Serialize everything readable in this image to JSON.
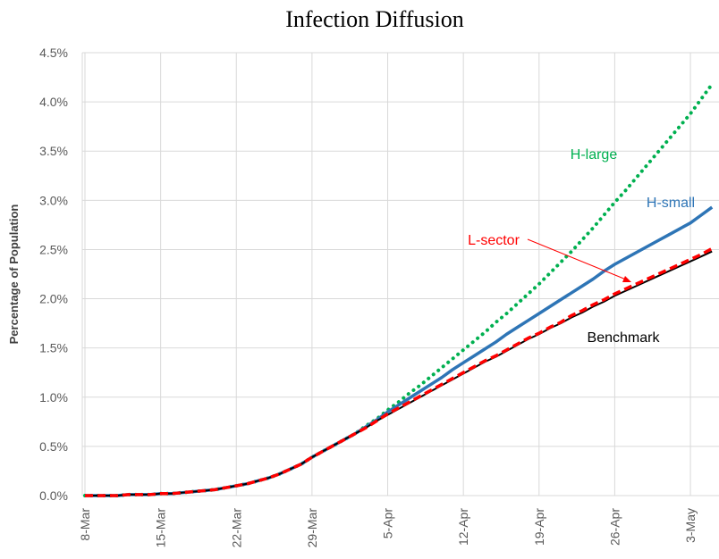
{
  "chart_data": {
    "type": "line",
    "title": "Infection Diffusion",
    "y_label": "Percentage of Population",
    "categories": [
      "8-Mar",
      null,
      null,
      null,
      null,
      null,
      null,
      "15-Mar",
      null,
      null,
      null,
      null,
      null,
      null,
      "22-Mar",
      null,
      null,
      null,
      null,
      null,
      null,
      "29-Mar",
      null,
      null,
      null,
      null,
      null,
      null,
      "5-Apr",
      null,
      null,
      null,
      null,
      null,
      null,
      "12-Apr",
      null,
      null,
      null,
      null,
      null,
      null,
      "19-Apr",
      null,
      null,
      null,
      null,
      null,
      null,
      "26-Apr",
      null,
      null,
      null,
      null,
      null,
      null,
      "3-May",
      null,
      null
    ],
    "ylim": [
      0,
      4.5
    ],
    "yticks": [
      {
        "value": 0,
        "label": "0.0%"
      },
      {
        "value": 0.5,
        "label": "0.5%"
      },
      {
        "value": 1,
        "label": "1.0%"
      },
      {
        "value": 1.5,
        "label": "1.5%"
      },
      {
        "value": 2,
        "label": "2.0%"
      },
      {
        "value": 2.5,
        "label": "2.5%"
      },
      {
        "value": 3,
        "label": "3.0%"
      },
      {
        "value": 3.5,
        "label": "3.5%"
      },
      {
        "value": 4,
        "label": "4.0%"
      },
      {
        "value": 4.5,
        "label": "4.5%"
      }
    ],
    "grid": true,
    "series": [
      {
        "name": "H-large",
        "color": "#00b050",
        "style": "dotted",
        "values": [
          0,
          0,
          0,
          0,
          0.01,
          0.01,
          0.01,
          0.02,
          0.02,
          0.03,
          0.04,
          0.05,
          0.06,
          0.08,
          0.1,
          0.12,
          0.15,
          0.18,
          0.22,
          0.27,
          0.32,
          0.39,
          0.45,
          0.51,
          0.57,
          0.63,
          0.71,
          0.78,
          0.87,
          0.95,
          1.04,
          1.12,
          1.21,
          1.3,
          1.39,
          1.48,
          1.57,
          1.66,
          1.76,
          1.85,
          1.95,
          2.05,
          2.15,
          2.26,
          2.37,
          2.48,
          2.6,
          2.72,
          2.85,
          2.98,
          3.1,
          3.23,
          3.36,
          3.49,
          3.62,
          3.75,
          3.88,
          4.03,
          4.18
        ]
      },
      {
        "name": "H-small",
        "color": "#2e75b6",
        "style": "solid",
        "values": [
          0,
          0,
          0,
          0,
          0.01,
          0.01,
          0.01,
          0.02,
          0.02,
          0.03,
          0.04,
          0.05,
          0.06,
          0.08,
          0.1,
          0.12,
          0.15,
          0.18,
          0.22,
          0.27,
          0.32,
          0.39,
          0.45,
          0.51,
          0.57,
          0.63,
          0.7,
          0.77,
          0.85,
          0.92,
          0.99,
          1.06,
          1.13,
          1.2,
          1.28,
          1.35,
          1.42,
          1.49,
          1.56,
          1.64,
          1.71,
          1.78,
          1.85,
          1.92,
          1.99,
          2.06,
          2.13,
          2.2,
          2.28,
          2.35,
          2.41,
          2.47,
          2.53,
          2.59,
          2.65,
          2.71,
          2.77,
          2.85,
          2.93
        ]
      },
      {
        "name": "Benchmark",
        "color": "#000000",
        "style": "thin",
        "values": [
          0,
          0,
          0,
          0,
          0.01,
          0.01,
          0.01,
          0.02,
          0.02,
          0.03,
          0.04,
          0.05,
          0.06,
          0.08,
          0.1,
          0.12,
          0.15,
          0.18,
          0.22,
          0.27,
          0.32,
          0.39,
          0.45,
          0.51,
          0.57,
          0.63,
          0.69,
          0.76,
          0.82,
          0.88,
          0.94,
          1,
          1.06,
          1.12,
          1.18,
          1.24,
          1.3,
          1.36,
          1.41,
          1.47,
          1.53,
          1.59,
          1.64,
          1.7,
          1.75,
          1.81,
          1.86,
          1.92,
          1.97,
          2.03,
          2.08,
          2.13,
          2.18,
          2.23,
          2.28,
          2.33,
          2.38,
          2.43,
          2.48
        ]
      },
      {
        "name": "L-sector",
        "color": "#ff0000",
        "style": "dashed",
        "values": [
          0,
          0,
          0,
          0,
          0.01,
          0.01,
          0.01,
          0.02,
          0.02,
          0.03,
          0.04,
          0.05,
          0.06,
          0.08,
          0.1,
          0.12,
          0.15,
          0.18,
          0.22,
          0.27,
          0.32,
          0.39,
          0.45,
          0.51,
          0.57,
          0.63,
          0.69,
          0.76,
          0.83,
          0.89,
          0.95,
          1.01,
          1.07,
          1.13,
          1.19,
          1.25,
          1.31,
          1.37,
          1.42,
          1.48,
          1.54,
          1.6,
          1.65,
          1.71,
          1.76,
          1.83,
          1.88,
          1.94,
          1.99,
          2.05,
          2.1,
          2.15,
          2.2,
          2.25,
          2.3,
          2.35,
          2.4,
          2.45,
          2.51
        ]
      }
    ],
    "annotations": [
      {
        "text": "H-large",
        "color": "#00b050"
      },
      {
        "text": "H-small",
        "color": "#2e75b6"
      },
      {
        "text": "L-sector",
        "color": "#ff0000"
      },
      {
        "text": "Benchmark",
        "color": "#000000"
      }
    ]
  }
}
